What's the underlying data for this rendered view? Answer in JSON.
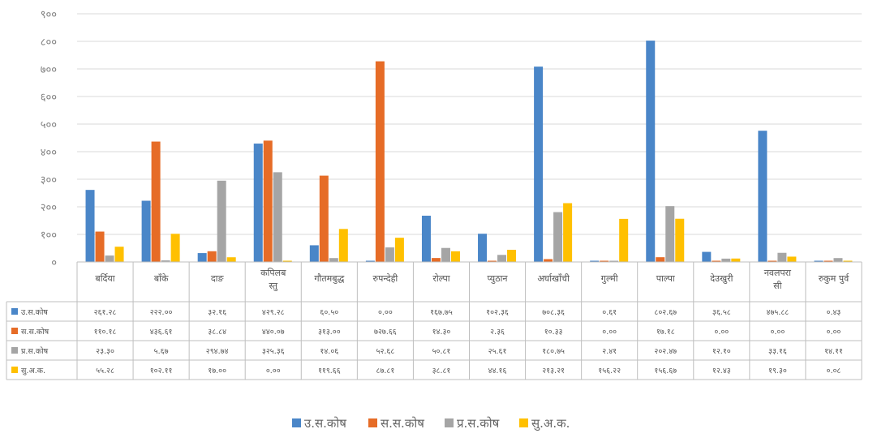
{
  "chart_data": {
    "type": "bar",
    "ylim": [
      0,
      900
    ],
    "yticks": [
      "०",
      "१००",
      "२००",
      "३००",
      "४००",
      "५००",
      "६००",
      "७००",
      "८००",
      "९००"
    ],
    "grid": true,
    "legend_position": "bottom",
    "categories": [
      [
        "बर्दिया"
      ],
      [
        "बाँके"
      ],
      [
        "दाङ"
      ],
      [
        "कपिलब",
        "स्तु"
      ],
      [
        "गौतमबुद्ध"
      ],
      [
        "रुपन्देही"
      ],
      [
        "रोल्पा"
      ],
      [
        "प्युठान"
      ],
      [
        "अर्घाखाँची"
      ],
      [
        "गुल्मी"
      ],
      [
        "पाल्पा"
      ],
      [
        "देउखुरी"
      ],
      [
        "नवलपरा",
        "सी"
      ],
      [
        "रुकुम पुर्व"
      ]
    ],
    "series": [
      {
        "name": "उ.स.कोष",
        "color": "#4a86c8",
        "values": [
          261.28,
          222.0,
          32.16,
          429.28,
          60.5,
          0.0,
          167.75,
          102.36,
          708.36,
          0.61,
          802.67,
          36.58,
          475.88,
          0.43
        ],
        "labels": [
          "२६१.२८",
          "२२२.००",
          "३२.१६",
          "४२९.२८",
          "६०.५०",
          "०.००",
          "१६७.७५",
          "१०२.३६",
          "७०८.३६",
          "०.६१",
          "८०२.६७",
          "३६.५८",
          "४७५.८८",
          "०.४३"
        ]
      },
      {
        "name": "स.स.कोष",
        "color": "#e66c27",
        "values": [
          110.18,
          436.61,
          38.84,
          440.07,
          313.0,
          727.66,
          14.3,
          2.36,
          10.33,
          0.0,
          17.18,
          0.0,
          0.0,
          0.0
        ],
        "labels": [
          "११०.१८",
          "४३६.६१",
          "३८.८४",
          "४४०.०७",
          "३१३.००",
          "७२७.६६",
          "१४.३०",
          "२.३६",
          "१०.३३",
          "०.००",
          "१७.१८",
          "०.००",
          "०.००",
          "०.००"
        ]
      },
      {
        "name": "प्र.स.कोष",
        "color": "#a5a5a5",
        "values": [
          23.3,
          5.67,
          294.74,
          325.36,
          14.06,
          52.68,
          50.81,
          25.61,
          180.75,
          2.41,
          202.47,
          12.1,
          33.16,
          14.11
        ],
        "labels": [
          "२३.३०",
          "५.६७",
          "२९४.७४",
          "३२५.३६",
          "१४.०६",
          "५२.६८",
          "५०.८१",
          "२५.६१",
          "१८०.७५",
          "२.४१",
          "२०२.४७",
          "१२.१०",
          "३३.१६",
          "१४.११"
        ]
      },
      {
        "name": "सु.अ.क.",
        "color": "#ffc000",
        "values": [
          55.28,
          102.11,
          17.0,
          0.0,
          119.66,
          87.81,
          38.81,
          44.16,
          213.21,
          156.22,
          156.67,
          12.43,
          19.3,
          0.08
        ],
        "labels": [
          "५५.२८",
          "१०२.११",
          "१७.००",
          "०.००",
          "११९.६६",
          "८७.८१",
          "३८.८१",
          "४४.१६",
          "२१३.२१",
          "१५६.२२",
          "१५६.६७",
          "१२.४३",
          "१९.३०",
          "०.०८"
        ]
      }
    ]
  }
}
